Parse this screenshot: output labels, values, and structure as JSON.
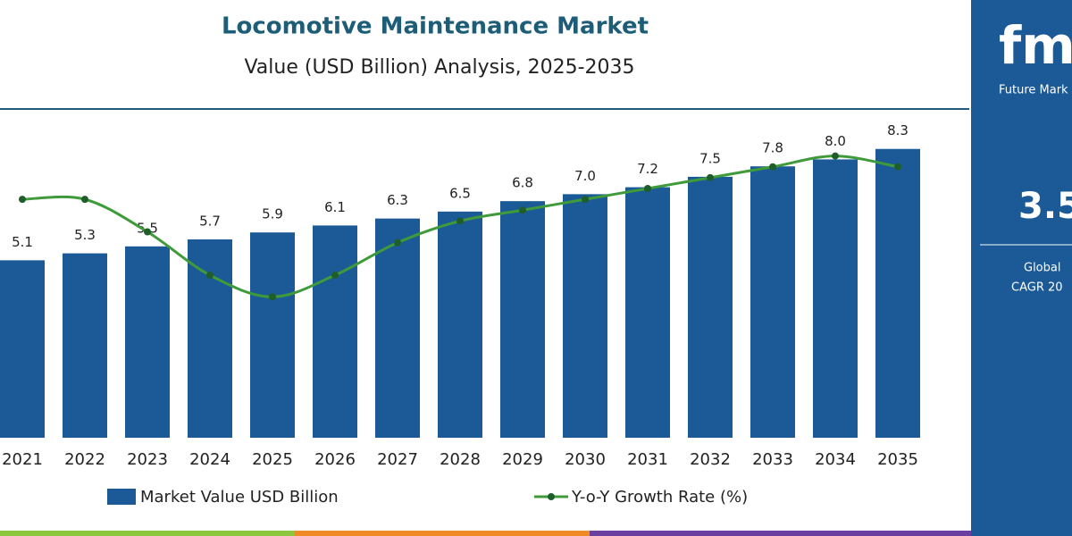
{
  "chart_data": {
    "type": "bar",
    "title": "Locomotive Maintenance Market",
    "subtitle": "Value (USD Billion) Analysis, 2025-2035",
    "categories": [
      "2021",
      "2022",
      "2023",
      "2024",
      "2025",
      "2026",
      "2027",
      "2028",
      "2029",
      "2030",
      "2031",
      "2032",
      "2033",
      "2034",
      "2035"
    ],
    "series": [
      {
        "name": "Market Value USD Billion",
        "type": "bar",
        "color": "#1b5a96",
        "values": [
          5.1,
          5.3,
          5.5,
          5.7,
          5.9,
          6.1,
          6.3,
          6.5,
          6.8,
          7.0,
          7.2,
          7.5,
          7.8,
          8.0,
          8.3
        ],
        "value_labels": [
          "5.1",
          "5.3",
          "5.5",
          "5.7",
          "5.9",
          "6.1",
          "6.3",
          "6.5",
          "6.8",
          "7.0",
          "7.2",
          "7.5",
          "7.8",
          "8.0",
          "8.3"
        ]
      },
      {
        "name": "Y-o-Y Growth Rate (%)",
        "type": "line",
        "axis": "y2",
        "color": "#3f9b3a",
        "values": [
          3.9,
          3.9,
          3.6,
          3.2,
          3.0,
          3.2,
          3.5,
          3.7,
          3.8,
          3.9,
          4.0,
          4.1,
          4.2,
          4.3,
          4.2
        ]
      }
    ],
    "ylim": [
      0,
      9.5
    ],
    "y2lim": [
      1.7,
      4.75
    ],
    "sidebar": {
      "logo": "fmi",
      "brand": "Future Mark",
      "cagr": "3.5",
      "cagr_label_1": "Global",
      "cagr_label_2": "CAGR 20"
    }
  }
}
